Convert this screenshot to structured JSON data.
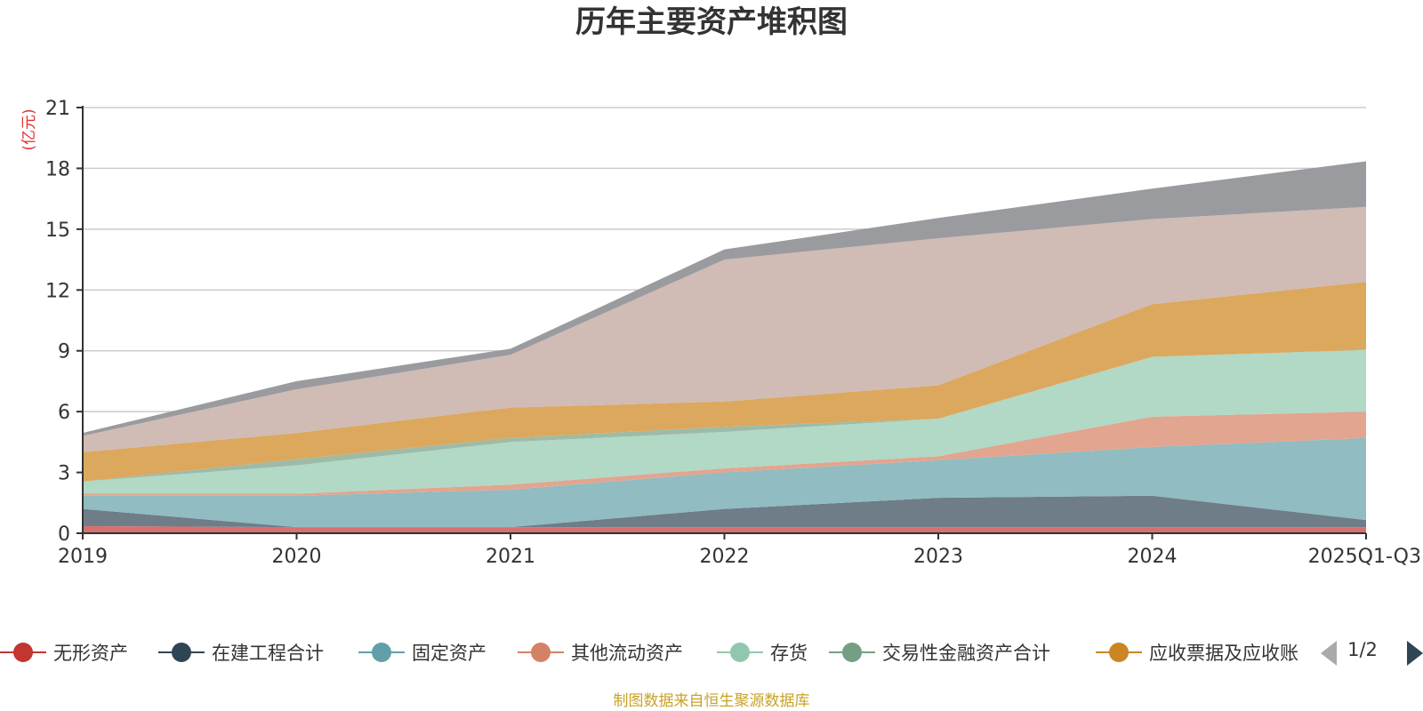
{
  "colors": {
    "grid": "#cccccc",
    "axis": "#333333",
    "unit": "#e03030",
    "source": "#c9a227",
    "pager_active": "#2f4554",
    "pager_inactive": "#aaaaaa"
  },
  "legend": {
    "page": "1/2"
  },
  "source_text": "制图数据来自恒生聚源数据库",
  "chart_data": {
    "type": "area",
    "stacked": true,
    "title": "历年主要资产堆积图",
    "ylabel": "(亿元)",
    "ylim": [
      0,
      21
    ],
    "yticks": [
      0,
      3,
      6,
      9,
      12,
      15,
      18,
      21
    ],
    "categories": [
      "2019",
      "2020",
      "2021",
      "2022",
      "2023",
      "2024",
      "2025Q1-Q3"
    ],
    "series": [
      {
        "name": "无形资产",
        "color": "#c23531",
        "fill": "#d87070",
        "values": [
          0.35,
          0.3,
          0.3,
          0.3,
          0.3,
          0.3,
          0.3
        ],
        "in_legend": true
      },
      {
        "name": "在建工程合计",
        "color": "#2f4554",
        "fill": "#6e7d88",
        "values": [
          0.85,
          0.0,
          0.0,
          0.9,
          1.45,
          1.55,
          0.35
        ],
        "in_legend": true
      },
      {
        "name": "固定资产",
        "color": "#61a0a8",
        "fill": "#90bcc2",
        "values": [
          0.65,
          1.55,
          1.85,
          1.8,
          1.85,
          2.4,
          4.05
        ],
        "in_legend": true
      },
      {
        "name": "其他流动资产",
        "color": "#d48265",
        "fill": "#e2a58f",
        "values": [
          0.1,
          0.1,
          0.25,
          0.2,
          0.2,
          1.5,
          1.3
        ],
        "in_legend": true
      },
      {
        "name": "存货",
        "color": "#91c7ae",
        "fill": "#b2d8c6",
        "values": [
          0.6,
          1.4,
          2.1,
          1.8,
          1.85,
          2.95,
          3.05
        ],
        "in_legend": true
      },
      {
        "name": "交易性金融资产合计",
        "color": "#749f83",
        "fill": "#9dbba6",
        "values": [
          0.0,
          0.3,
          0.2,
          0.25,
          0.0,
          0.0,
          0.0
        ],
        "in_legend": true
      },
      {
        "name": "应收票据及应收账",
        "color": "#ca8622",
        "fill": "#dba85e",
        "values": [
          1.45,
          1.3,
          1.5,
          1.25,
          1.65,
          2.6,
          3.35
        ],
        "in_legend": true
      },
      {
        "name": "series-8",
        "color": "#bda29a",
        "fill": "#d0bbb5",
        "values": [
          0.8,
          2.15,
          2.6,
          7.0,
          7.25,
          4.2,
          3.7
        ],
        "in_legend": false
      },
      {
        "name": "series-9",
        "color": "#6e7074",
        "fill": "#9a9b9f",
        "values": [
          0.15,
          0.4,
          0.3,
          0.5,
          1.0,
          1.5,
          2.25
        ],
        "in_legend": false
      }
    ]
  }
}
